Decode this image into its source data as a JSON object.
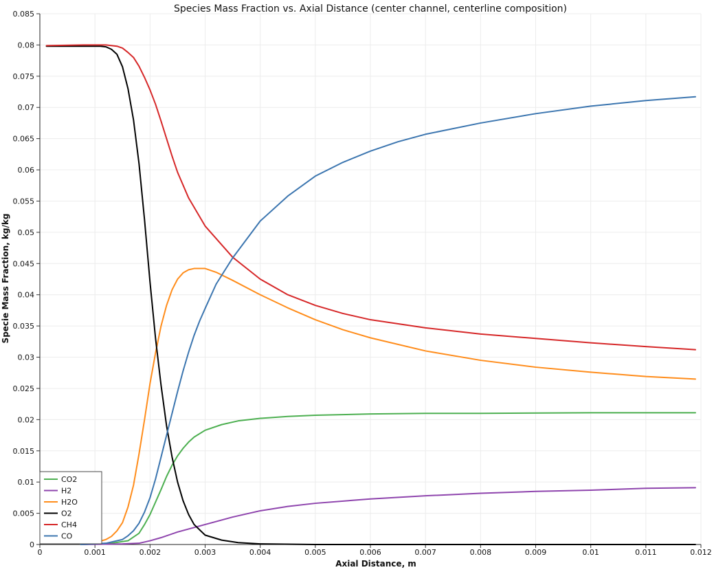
{
  "chart_data": {
    "type": "line",
    "title": "Species Mass Fraction vs. Axial Distance (center channel, centerline composition)",
    "xlabel": "Axial Distance, m",
    "ylabel": "Specie Mass Fraction, kg/kg",
    "xlim": [
      0,
      0.012
    ],
    "ylim": [
      0,
      0.085
    ],
    "x_ticks": [
      "0",
      "0.001",
      "0.002",
      "0.003",
      "0.004",
      "0.005",
      "0.006",
      "0.007",
      "0.008",
      "0.009",
      "0.01",
      "0.011",
      "0.012"
    ],
    "y_ticks": [
      "0",
      "0.005",
      "0.01",
      "0.015",
      "0.02",
      "0.025",
      "0.03",
      "0.035",
      "0.04",
      "0.045",
      "0.05",
      "0.055",
      "0.06",
      "0.065",
      "0.07",
      "0.075",
      "0.08",
      "0.085"
    ],
    "grid": true,
    "legend_position": "bottom-left",
    "series": [
      {
        "name": "CO2",
        "color": "#4caf50",
        "points": [
          [
            0.00074,
            0.0
          ],
          [
            0.0013,
            0.0002
          ],
          [
            0.0016,
            0.0006
          ],
          [
            0.0018,
            0.0018
          ],
          [
            0.0019,
            0.0032
          ],
          [
            0.002,
            0.0048
          ],
          [
            0.0021,
            0.0068
          ],
          [
            0.0022,
            0.0088
          ],
          [
            0.0023,
            0.0109
          ],
          [
            0.0024,
            0.0127
          ],
          [
            0.0025,
            0.0142
          ],
          [
            0.0026,
            0.0154
          ],
          [
            0.0027,
            0.0164
          ],
          [
            0.0028,
            0.0172
          ],
          [
            0.003,
            0.0183
          ],
          [
            0.0033,
            0.0192
          ],
          [
            0.0036,
            0.0198
          ],
          [
            0.004,
            0.0202
          ],
          [
            0.0045,
            0.0205
          ],
          [
            0.005,
            0.0207
          ],
          [
            0.006,
            0.0209
          ],
          [
            0.007,
            0.021
          ],
          [
            0.008,
            0.021
          ],
          [
            0.01,
            0.0211
          ],
          [
            0.0119,
            0.0211
          ]
        ]
      },
      {
        "name": "H2",
        "color": "#8e44ad",
        "points": [
          [
            0.00074,
            0.0
          ],
          [
            0.0015,
            0.0001
          ],
          [
            0.0018,
            0.0002
          ],
          [
            0.002,
            0.0006
          ],
          [
            0.0022,
            0.0011
          ],
          [
            0.0025,
            0.002
          ],
          [
            0.003,
            0.0032
          ],
          [
            0.0035,
            0.0044
          ],
          [
            0.004,
            0.0054
          ],
          [
            0.0045,
            0.0061
          ],
          [
            0.005,
            0.0066
          ],
          [
            0.006,
            0.0073
          ],
          [
            0.007,
            0.0078
          ],
          [
            0.008,
            0.0082
          ],
          [
            0.009,
            0.0085
          ],
          [
            0.01,
            0.0087
          ],
          [
            0.011,
            0.009
          ],
          [
            0.0119,
            0.0091
          ]
        ]
      },
      {
        "name": "H2O",
        "color": "#ff8c1a",
        "points": [
          [
            0.00074,
            0.0
          ],
          [
            0.001,
            0.0003
          ],
          [
            0.0012,
            0.0008
          ],
          [
            0.0013,
            0.0013
          ],
          [
            0.0014,
            0.0022
          ],
          [
            0.0015,
            0.0035
          ],
          [
            0.0016,
            0.006
          ],
          [
            0.0017,
            0.0095
          ],
          [
            0.0018,
            0.0145
          ],
          [
            0.0019,
            0.02
          ],
          [
            0.002,
            0.0258
          ],
          [
            0.0021,
            0.0307
          ],
          [
            0.0022,
            0.035
          ],
          [
            0.0023,
            0.0383
          ],
          [
            0.0024,
            0.0408
          ],
          [
            0.0025,
            0.0425
          ],
          [
            0.0026,
            0.0435
          ],
          [
            0.0027,
            0.044
          ],
          [
            0.0028,
            0.0442
          ],
          [
            0.003,
            0.0442
          ],
          [
            0.0032,
            0.0436
          ],
          [
            0.0035,
            0.0423
          ],
          [
            0.004,
            0.04
          ],
          [
            0.0045,
            0.0379
          ],
          [
            0.005,
            0.036
          ],
          [
            0.0055,
            0.0344
          ],
          [
            0.006,
            0.0331
          ],
          [
            0.007,
            0.031
          ],
          [
            0.008,
            0.0295
          ],
          [
            0.009,
            0.0284
          ],
          [
            0.01,
            0.0276
          ],
          [
            0.011,
            0.0269
          ],
          [
            0.0119,
            0.0265
          ]
        ]
      },
      {
        "name": "O2",
        "color": "#000000",
        "points": [
          [
            0.00012,
            0.0798
          ],
          [
            0.0008,
            0.0798
          ],
          [
            0.0011,
            0.0798
          ],
          [
            0.0012,
            0.0797
          ],
          [
            0.0013,
            0.0793
          ],
          [
            0.0014,
            0.0785
          ],
          [
            0.0015,
            0.0765
          ],
          [
            0.0016,
            0.073
          ],
          [
            0.0017,
            0.068
          ],
          [
            0.0018,
            0.061
          ],
          [
            0.0019,
            0.052
          ],
          [
            0.002,
            0.042
          ],
          [
            0.0021,
            0.033
          ],
          [
            0.0022,
            0.0255
          ],
          [
            0.0023,
            0.019
          ],
          [
            0.0024,
            0.014
          ],
          [
            0.0025,
            0.01
          ],
          [
            0.0026,
            0.007
          ],
          [
            0.0027,
            0.0048
          ],
          [
            0.0028,
            0.0032
          ],
          [
            0.003,
            0.0015
          ],
          [
            0.0033,
            0.0007
          ],
          [
            0.0036,
            0.0003
          ],
          [
            0.004,
            0.0001
          ],
          [
            0.005,
            0.0
          ],
          [
            0.007,
            0.0
          ],
          [
            0.0119,
            0.0
          ]
        ]
      },
      {
        "name": "CH4",
        "color": "#d62728",
        "points": [
          [
            0.00012,
            0.0799
          ],
          [
            0.0008,
            0.08
          ],
          [
            0.001,
            0.08
          ],
          [
            0.0012,
            0.08
          ],
          [
            0.0014,
            0.0798
          ],
          [
            0.0015,
            0.0795
          ],
          [
            0.0016,
            0.0788
          ],
          [
            0.0017,
            0.078
          ],
          [
            0.0018,
            0.0766
          ],
          [
            0.0019,
            0.0748
          ],
          [
            0.002,
            0.0728
          ],
          [
            0.0021,
            0.0705
          ],
          [
            0.0022,
            0.0678
          ],
          [
            0.0023,
            0.065
          ],
          [
            0.0024,
            0.0622
          ],
          [
            0.0025,
            0.0596
          ],
          [
            0.0027,
            0.0555
          ],
          [
            0.003,
            0.051
          ],
          [
            0.0035,
            0.046
          ],
          [
            0.004,
            0.0425
          ],
          [
            0.0045,
            0.04
          ],
          [
            0.005,
            0.0383
          ],
          [
            0.0055,
            0.037
          ],
          [
            0.006,
            0.036
          ],
          [
            0.007,
            0.0347
          ],
          [
            0.008,
            0.0337
          ],
          [
            0.009,
            0.033
          ],
          [
            0.01,
            0.0323
          ],
          [
            0.011,
            0.0317
          ],
          [
            0.0119,
            0.0312
          ]
        ]
      },
      {
        "name": "CO",
        "color": "#3b75af",
        "points": [
          [
            0.00074,
            0.0
          ],
          [
            0.0012,
            0.0002
          ],
          [
            0.0015,
            0.0008
          ],
          [
            0.0016,
            0.0014
          ],
          [
            0.0017,
            0.0022
          ],
          [
            0.0018,
            0.0034
          ],
          [
            0.0019,
            0.0052
          ],
          [
            0.002,
            0.0075
          ],
          [
            0.0021,
            0.0105
          ],
          [
            0.0022,
            0.014
          ],
          [
            0.0023,
            0.0175
          ],
          [
            0.0024,
            0.021
          ],
          [
            0.0025,
            0.0245
          ],
          [
            0.0026,
            0.0278
          ],
          [
            0.0027,
            0.0308
          ],
          [
            0.0028,
            0.0335
          ],
          [
            0.0029,
            0.0358
          ],
          [
            0.003,
            0.0378
          ],
          [
            0.0032,
            0.0417
          ],
          [
            0.0035,
            0.0459
          ],
          [
            0.004,
            0.0518
          ],
          [
            0.0045,
            0.0558
          ],
          [
            0.005,
            0.059
          ],
          [
            0.0055,
            0.0612
          ],
          [
            0.006,
            0.063
          ],
          [
            0.0065,
            0.0645
          ],
          [
            0.007,
            0.0657
          ],
          [
            0.008,
            0.0675
          ],
          [
            0.009,
            0.069
          ],
          [
            0.01,
            0.0702
          ],
          [
            0.011,
            0.0711
          ],
          [
            0.0119,
            0.0717
          ]
        ]
      }
    ]
  }
}
